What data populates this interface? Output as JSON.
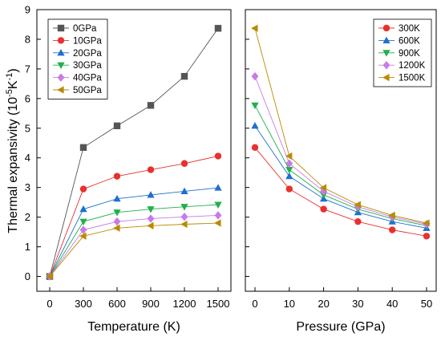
{
  "chart_data": [
    {
      "type": "line",
      "xlabel": "Temperature (K)",
      "ylabel_parts": [
        "Thermal expansivity (10",
        "-5",
        "K",
        "-1",
        ")"
      ],
      "x": [
        0,
        300,
        600,
        900,
        1200,
        1500
      ],
      "xticks": [
        "0",
        "300",
        "600",
        "900",
        "1200",
        "1500"
      ],
      "ylim": [
        -0.5,
        9
      ],
      "yticks": [
        "0",
        "1",
        "2",
        "3",
        "4",
        "5",
        "6",
        "7",
        "8",
        "9"
      ],
      "legend_position": "top-left",
      "series": [
        {
          "name": "0GPa",
          "color": "#555555",
          "marker": "square",
          "values": [
            0,
            4.35,
            5.08,
            5.77,
            6.75,
            8.37
          ]
        },
        {
          "name": "10GPa",
          "color": "#e8312e",
          "marker": "circle",
          "values": [
            0,
            2.95,
            3.38,
            3.6,
            3.81,
            4.06
          ]
        },
        {
          "name": "20GPa",
          "color": "#1f6fd1",
          "marker": "triangle-up",
          "values": [
            0,
            2.27,
            2.62,
            2.75,
            2.87,
            2.99
          ]
        },
        {
          "name": "30GPa",
          "color": "#21b04a",
          "marker": "triangle-down",
          "values": [
            0,
            1.85,
            2.16,
            2.27,
            2.35,
            2.42
          ]
        },
        {
          "name": "40GPa",
          "color": "#c77be6",
          "marker": "diamond",
          "values": [
            0,
            1.57,
            1.85,
            1.95,
            2.01,
            2.06
          ]
        },
        {
          "name": "50GPa",
          "color": "#bb8a00",
          "marker": "triangle-left",
          "values": [
            0,
            1.36,
            1.63,
            1.71,
            1.76,
            1.8
          ]
        }
      ]
    },
    {
      "type": "line",
      "xlabel": "Pressure (GPa)",
      "x": [
        0,
        10,
        20,
        30,
        40,
        50
      ],
      "xticks": [
        "0",
        "10",
        "20",
        "30",
        "40",
        "50"
      ],
      "ylim": [
        -0.5,
        9
      ],
      "legend_position": "top-right",
      "series": [
        {
          "name": "300K",
          "color": "#e8312e",
          "marker": "circle",
          "values": [
            4.35,
            2.95,
            2.27,
            1.85,
            1.57,
            1.36
          ]
        },
        {
          "name": "600K",
          "color": "#1f6fd1",
          "marker": "triangle-up",
          "values": [
            5.08,
            3.38,
            2.62,
            2.16,
            1.85,
            1.63
          ]
        },
        {
          "name": "900K",
          "color": "#21b04a",
          "marker": "triangle-down",
          "values": [
            5.77,
            3.6,
            2.75,
            2.27,
            1.95,
            1.71
          ]
        },
        {
          "name": "1200K",
          "color": "#c77be6",
          "marker": "diamond",
          "values": [
            6.75,
            3.81,
            2.87,
            2.35,
            2.01,
            1.76
          ]
        },
        {
          "name": "1500K",
          "color": "#bb8a00",
          "marker": "triangle-left",
          "values": [
            8.37,
            4.06,
            2.99,
            2.42,
            2.06,
            1.8
          ]
        }
      ]
    }
  ]
}
